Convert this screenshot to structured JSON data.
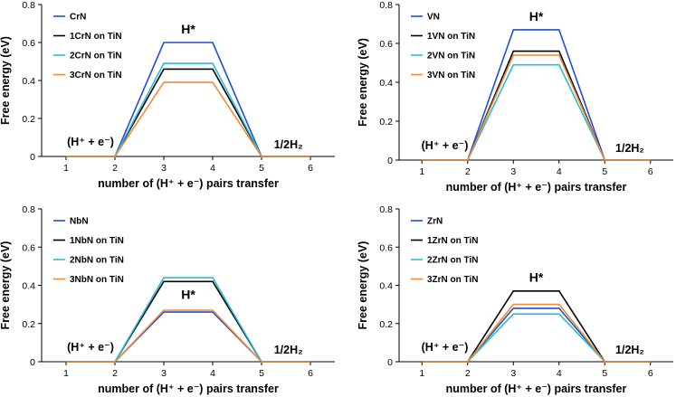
{
  "chart_data": [
    {
      "type": "line",
      "x": [
        1,
        2,
        3,
        4,
        5,
        6
      ],
      "xlabel": "number of (H⁺ + e⁻) pairs transfer",
      "ylabel": "Free energy (eV)",
      "ylim": [
        0,
        0.8
      ],
      "yticks": [
        "0",
        "0.2",
        "0.4",
        "0.6",
        "0.8"
      ],
      "xticks": [
        "1",
        "2",
        "3",
        "4",
        "5",
        "6"
      ],
      "annotations": {
        "left": "(H⁺ + e⁻)",
        "peak": "H*",
        "right": "1/2H₂"
      },
      "series": [
        {
          "name": "CrN",
          "color": "#1f4fd8",
          "values": [
            0,
            0,
            0.6,
            0.6,
            0,
            0
          ]
        },
        {
          "name": "1CrN on TiN",
          "color": "#000000",
          "values": [
            0,
            0,
            0.46,
            0.46,
            0,
            0
          ]
        },
        {
          "name": "2CrN on TiN",
          "color": "#2bbcd6",
          "values": [
            0,
            0,
            0.49,
            0.49,
            0,
            0
          ]
        },
        {
          "name": "3CrN on TiN",
          "color": "#f28c3a",
          "values": [
            0,
            0,
            0.39,
            0.39,
            0,
            0
          ]
        }
      ]
    },
    {
      "type": "line",
      "x": [
        1,
        2,
        3,
        4,
        5,
        6
      ],
      "xlabel": "number of (H⁺ + e⁻) pairs transfer",
      "ylabel": "Free energy (eV)",
      "ylim": [
        0,
        0.8
      ],
      "yticks": [
        "0",
        "0.2",
        "0.4",
        "0.6",
        "0.8"
      ],
      "xticks": [
        "1",
        "2",
        "3",
        "4",
        "5",
        "6"
      ],
      "annotations": {
        "left": "(H⁺ + e⁻)",
        "peak": "H*",
        "right": "1/2H₂"
      },
      "series": [
        {
          "name": "VN",
          "color": "#1f4fd8",
          "values": [
            0,
            0,
            0.67,
            0.67,
            0,
            0
          ]
        },
        {
          "name": "1VN on TiN",
          "color": "#000000",
          "values": [
            0,
            0,
            0.56,
            0.56,
            0,
            0
          ]
        },
        {
          "name": "2VN on TiN",
          "color": "#2bbcd6",
          "values": [
            0,
            0,
            0.49,
            0.49,
            0,
            0
          ]
        },
        {
          "name": "3VN on TiN",
          "color": "#f28c3a",
          "values": [
            0,
            0,
            0.54,
            0.54,
            0,
            0
          ]
        }
      ]
    },
    {
      "type": "line",
      "x": [
        1,
        2,
        3,
        4,
        5,
        6
      ],
      "xlabel": "number of (H⁺ + e⁻) pairs transfer",
      "ylabel": "Free energy (eV)",
      "ylim": [
        0,
        0.8
      ],
      "yticks": [
        "0",
        "0.2",
        "0.4",
        "0.6",
        "0.8"
      ],
      "xticks": [
        "1",
        "2",
        "3",
        "4",
        "5",
        "6"
      ],
      "annotations": {
        "left": "(H⁺ + e⁻)",
        "peak": "H*",
        "right": "1/2H₂"
      },
      "series": [
        {
          "name": "NbN",
          "color": "#1f4fd8",
          "values": [
            0,
            0,
            0.26,
            0.26,
            0,
            0
          ]
        },
        {
          "name": "1NbN on TiN",
          "color": "#000000",
          "values": [
            0,
            0,
            0.42,
            0.42,
            0,
            0
          ]
        },
        {
          "name": "2NbN on TiN",
          "color": "#2bbcd6",
          "values": [
            0,
            0,
            0.44,
            0.44,
            0,
            0
          ]
        },
        {
          "name": "3NbN on TiN",
          "color": "#f28c3a",
          "values": [
            0,
            0,
            0.27,
            0.27,
            0,
            0
          ]
        }
      ]
    },
    {
      "type": "line",
      "x": [
        1,
        2,
        3,
        4,
        5,
        6
      ],
      "xlabel": "number of (H⁺ + e⁻) pairs transfer",
      "ylabel": "Free energy (eV)",
      "ylim": [
        0,
        0.8
      ],
      "yticks": [
        "0",
        "0.2",
        "0.4",
        "0.6",
        "0.8"
      ],
      "xticks": [
        "1",
        "2",
        "3",
        "4",
        "5",
        "6"
      ],
      "annotations": {
        "left": "(H⁺ + e⁻)",
        "peak": "H*",
        "right": "1/2H₂"
      },
      "series": [
        {
          "name": "ZrN",
          "color": "#1f4fd8",
          "values": [
            0,
            0,
            0.28,
            0.28,
            0,
            0
          ]
        },
        {
          "name": "1ZrN on TiN",
          "color": "#000000",
          "values": [
            0,
            0,
            0.37,
            0.37,
            0,
            0
          ]
        },
        {
          "name": "2ZrN on TiN",
          "color": "#2bbcd6",
          "values": [
            0,
            0,
            0.25,
            0.25,
            0,
            0
          ]
        },
        {
          "name": "3ZrN on TiN",
          "color": "#f28c3a",
          "values": [
            0,
            0,
            0.3,
            0.3,
            0,
            0
          ]
        }
      ]
    }
  ]
}
